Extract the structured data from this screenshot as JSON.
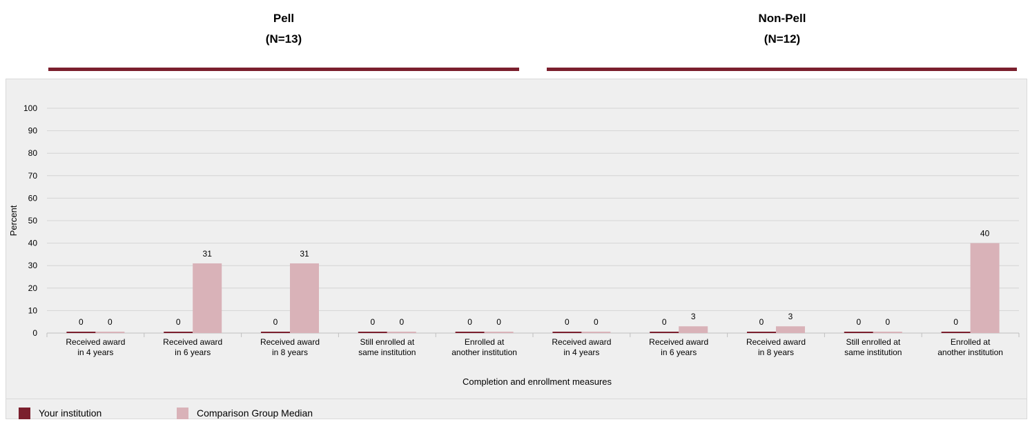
{
  "groups": [
    {
      "title": "Pell",
      "n": "(N=13)"
    },
    {
      "title": "Non-Pell",
      "n": "(N=12)"
    }
  ],
  "legend": {
    "series1": "Your institution",
    "series2": "Comparison Group Median"
  },
  "colors": {
    "series1": "#7b1f2d",
    "series2": "#d9b2b8",
    "group_rule": "#7b1f2d"
  },
  "chart_data": {
    "type": "bar",
    "ylabel": "Percent",
    "xlabel": "Completion and enrollment measures",
    "ylim": [
      0,
      100
    ],
    "yticks": [
      0,
      10,
      20,
      30,
      40,
      50,
      60,
      70,
      80,
      90,
      100
    ],
    "grid": true,
    "legend_position": "bottom",
    "categories": [
      [
        "Received award",
        "in 4 years"
      ],
      [
        "Received award",
        "in 6 years"
      ],
      [
        "Received award",
        "in 8 years"
      ],
      [
        "Still enrolled at",
        "same institution"
      ],
      [
        "Enrolled at",
        "another institution"
      ],
      [
        "Received award",
        "in 4 years"
      ],
      [
        "Received award",
        "in 6 years"
      ],
      [
        "Received award",
        "in 8 years"
      ],
      [
        "Still enrolled at",
        "same institution"
      ],
      [
        "Enrolled at",
        "another institution"
      ]
    ],
    "series": [
      {
        "name": "Your institution",
        "values": [
          0,
          0,
          0,
          0,
          0,
          0,
          0,
          0,
          0,
          0
        ]
      },
      {
        "name": "Comparison Group Median",
        "values": [
          0,
          31,
          31,
          0,
          0,
          0,
          3,
          3,
          0,
          40
        ]
      }
    ]
  }
}
